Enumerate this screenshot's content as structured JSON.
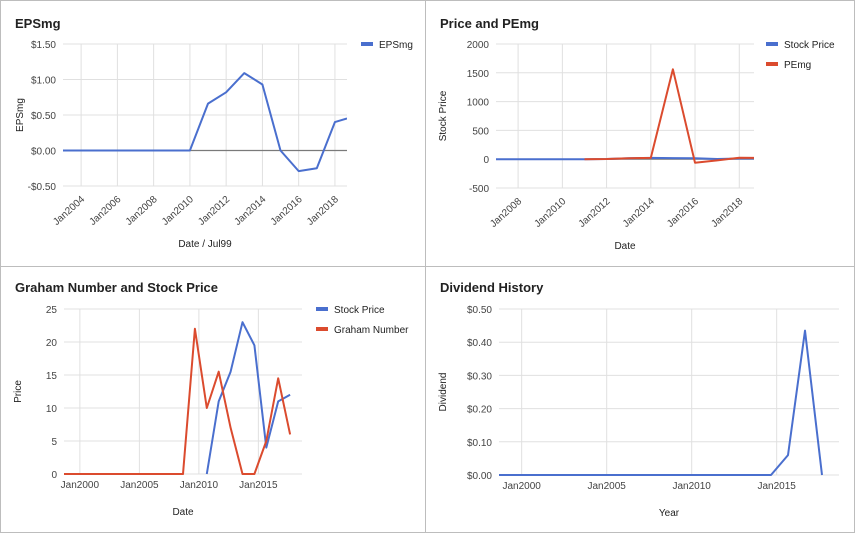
{
  "colors": {
    "blue": "#4a6fce",
    "red": "#db4b2e"
  },
  "chart_data": [
    {
      "type": "line",
      "title": "EPSmg",
      "xlabel": "Date / Jul99",
      "ylabel": "EPSmg",
      "x_type": "date",
      "xlim": [
        "2003-01-01",
        "2018-09-01"
      ],
      "xticks": [
        {
          "v": "2004-01-01",
          "label": "Jan2004"
        },
        {
          "v": "2006-01-01",
          "label": "Jan2006"
        },
        {
          "v": "2008-01-01",
          "label": "Jan2008"
        },
        {
          "v": "2010-01-01",
          "label": "Jan2010"
        },
        {
          "v": "2012-01-01",
          "label": "Jan2012"
        },
        {
          "v": "2014-01-01",
          "label": "Jan2014"
        },
        {
          "v": "2016-01-01",
          "label": "Jan2016"
        },
        {
          "v": "2018-01-01",
          "label": "Jan2018"
        }
      ],
      "ylim": [
        -0.5,
        1.5
      ],
      "yticks": [
        {
          "v": 1.5,
          "label": "$1.50"
        },
        {
          "v": 1.0,
          "label": "$1.00"
        },
        {
          "v": 0.5,
          "label": "$0.50"
        },
        {
          "v": 0.0,
          "label": "$0.00"
        },
        {
          "v": -0.5,
          "label": "-$0.50"
        }
      ],
      "zero_line": true,
      "legend_position": "top-right",
      "series": [
        {
          "name": "EPSmg",
          "color": "#4a6fce",
          "points": [
            [
              "2003-01-01",
              0
            ],
            [
              "2004-01-01",
              0
            ],
            [
              "2005-01-01",
              0
            ],
            [
              "2006-01-01",
              0
            ],
            [
              "2007-01-01",
              0
            ],
            [
              "2008-01-01",
              0
            ],
            [
              "2009-01-01",
              0
            ],
            [
              "2010-01-01",
              0
            ],
            [
              "2011-01-01",
              0.66
            ],
            [
              "2012-01-01",
              0.82
            ],
            [
              "2013-01-01",
              1.09
            ],
            [
              "2014-01-01",
              0.93
            ],
            [
              "2015-01-01",
              0.0
            ],
            [
              "2016-01-01",
              -0.29
            ],
            [
              "2017-01-01",
              -0.25
            ],
            [
              "2018-01-01",
              0.4
            ],
            [
              "2018-09-01",
              0.45
            ]
          ]
        }
      ]
    },
    {
      "type": "line",
      "title": "Price and PEmg",
      "xlabel": "Date",
      "ylabel": "Stock Price",
      "x_type": "date",
      "xlim": [
        "2007-01-01",
        "2018-09-01"
      ],
      "xticks": [
        {
          "v": "2008-01-01",
          "label": "Jan2008"
        },
        {
          "v": "2010-01-01",
          "label": "Jan2010"
        },
        {
          "v": "2012-01-01",
          "label": "Jan2012"
        },
        {
          "v": "2014-01-01",
          "label": "Jan2014"
        },
        {
          "v": "2016-01-01",
          "label": "Jan2016"
        },
        {
          "v": "2018-01-01",
          "label": "Jan2018"
        }
      ],
      "ylim": [
        -500,
        2000
      ],
      "yticks": [
        {
          "v": 2000,
          "label": "2000"
        },
        {
          "v": 1500,
          "label": "1500"
        },
        {
          "v": 1000,
          "label": "1000"
        },
        {
          "v": 500,
          "label": "500"
        },
        {
          "v": 0,
          "label": "0"
        },
        {
          "v": -500,
          "label": "-500"
        }
      ],
      "zero_line": true,
      "legend_position": "top-right",
      "series": [
        {
          "name": "Stock Price",
          "color": "#4a6fce",
          "points": [
            [
              "2007-01-01",
              0
            ],
            [
              "2008-01-01",
              0
            ],
            [
              "2009-01-01",
              0
            ],
            [
              "2010-01-01",
              0
            ],
            [
              "2011-01-01",
              0
            ],
            [
              "2012-01-01",
              4
            ],
            [
              "2013-01-01",
              16
            ],
            [
              "2014-01-01",
              23
            ],
            [
              "2015-01-01",
              19
            ],
            [
              "2016-01-01",
              17
            ],
            [
              "2017-01-01",
              4
            ],
            [
              "2018-01-01",
              12
            ],
            [
              "2018-09-01",
              12
            ]
          ]
        },
        {
          "name": "PEmg",
          "color": "#db4b2e",
          "points": [
            [
              "2011-01-01",
              0
            ],
            [
              "2012-01-01",
              4
            ],
            [
              "2013-01-01",
              18
            ],
            [
              "2014-01-01",
              22
            ],
            [
              "2015-01-01",
              1560
            ],
            [
              "2016-01-01",
              -60
            ],
            [
              "2017-01-01",
              -20
            ],
            [
              "2018-01-01",
              25
            ],
            [
              "2018-09-01",
              22
            ]
          ]
        }
      ]
    },
    {
      "type": "line",
      "title": "Graham Number and Stock Price",
      "xlabel": "Date",
      "ylabel": "Price",
      "x_type": "date",
      "xlim": [
        "1998-09-01",
        "2018-09-01"
      ],
      "xticks": [
        {
          "v": "2000-01-01",
          "label": "Jan2000"
        },
        {
          "v": "2005-01-01",
          "label": "Jan2005"
        },
        {
          "v": "2010-01-01",
          "label": "Jan2010"
        },
        {
          "v": "2015-01-01",
          "label": "Jan2015"
        }
      ],
      "ylim": [
        0,
        25
      ],
      "yticks": [
        {
          "v": 25,
          "label": "25"
        },
        {
          "v": 20,
          "label": "20"
        },
        {
          "v": 15,
          "label": "15"
        },
        {
          "v": 10,
          "label": "10"
        },
        {
          "v": 5,
          "label": "5"
        },
        {
          "v": 0,
          "label": "0"
        }
      ],
      "zero_line": false,
      "legend_position": "top-right",
      "series": [
        {
          "name": "Stock Price",
          "color": "#4a6fce",
          "points": [
            [
              "2010-09-01",
              0
            ],
            [
              "2011-09-01",
              11
            ],
            [
              "2012-09-01",
              15.5
            ],
            [
              "2013-09-01",
              23
            ],
            [
              "2014-09-01",
              19.5
            ],
            [
              "2015-09-01",
              4
            ],
            [
              "2016-09-01",
              11
            ],
            [
              "2017-09-01",
              12
            ]
          ]
        },
        {
          "name": "Graham Number",
          "color": "#db4b2e",
          "points": [
            [
              "1998-09-01",
              0
            ],
            [
              "2008-09-01",
              0
            ],
            [
              "2009-09-01",
              22
            ],
            [
              "2010-09-01",
              10
            ],
            [
              "2011-09-01",
              15.5
            ],
            [
              "2012-09-01",
              7
            ],
            [
              "2013-09-01",
              0
            ],
            [
              "2014-09-01",
              0
            ],
            [
              "2015-09-01",
              5
            ],
            [
              "2016-09-01",
              14.5
            ],
            [
              "2017-09-01",
              6
            ]
          ]
        }
      ]
    },
    {
      "type": "line",
      "title": "Dividend History",
      "xlabel": "Year",
      "ylabel": "Dividend",
      "x_type": "date",
      "xlim": [
        "1998-09-01",
        "2018-09-01"
      ],
      "xticks": [
        {
          "v": "2000-01-01",
          "label": "Jan2000"
        },
        {
          "v": "2005-01-01",
          "label": "Jan2005"
        },
        {
          "v": "2010-01-01",
          "label": "Jan2010"
        },
        {
          "v": "2015-01-01",
          "label": "Jan2015"
        }
      ],
      "ylim": [
        0,
        0.5
      ],
      "yticks": [
        {
          "v": 0.5,
          "label": "$0.50"
        },
        {
          "v": 0.4,
          "label": "$0.40"
        },
        {
          "v": 0.3,
          "label": "$0.30"
        },
        {
          "v": 0.2,
          "label": "$0.20"
        },
        {
          "v": 0.1,
          "label": "$0.10"
        },
        {
          "v": 0.0,
          "label": "$0.00"
        }
      ],
      "zero_line": false,
      "series": [
        {
          "name": "",
          "color": "#4a6fce",
          "points": [
            [
              "1998-09-01",
              0
            ],
            [
              "2014-09-01",
              0
            ],
            [
              "2015-09-01",
              0.06
            ],
            [
              "2016-09-01",
              0.435
            ],
            [
              "2017-09-01",
              0.0
            ]
          ]
        }
      ]
    }
  ]
}
